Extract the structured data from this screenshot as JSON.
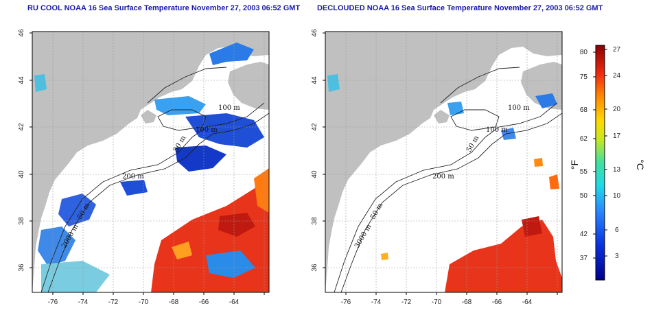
{
  "titles": {
    "left": "RU COOL NOAA 16 Sea Surface Temperature November 27, 2003 06:52 GMT",
    "right": "DECLOUDED NOAA 16 Sea Surface Temperature November 27, 2003 06:52 GMT"
  },
  "map_axes": {
    "lon_ticks": [
      "-76",
      "-74",
      "-72",
      "-70",
      "-68",
      "-66",
      "-64"
    ],
    "lat_ticks": [
      "46",
      "44",
      "42",
      "40",
      "38",
      "36"
    ]
  },
  "contour_labels": {
    "left": [
      "100 m",
      "100 m",
      "50 m",
      "200 m",
      "50 m",
      "2000 m"
    ],
    "right": [
      "100 m",
      "100 m",
      "50 m",
      "200 m",
      "50 m",
      "3000 m"
    ]
  },
  "colorbar": {
    "fahrenheit_unit": "°F",
    "celsius_unit": "°C",
    "fahrenheit_ticks": [
      "80",
      "75",
      "68",
      "62",
      "55",
      "50",
      "42",
      "37"
    ],
    "celsius_ticks": [
      "27",
      "24",
      "20",
      "17",
      "13",
      "10",
      "6",
      "3"
    ]
  },
  "colors": {
    "land": "#c0c0c0",
    "cloud": "#ffffff",
    "title": "#1a1aa6",
    "warm": "#e8341a",
    "cold": "#1f4fd6"
  }
}
